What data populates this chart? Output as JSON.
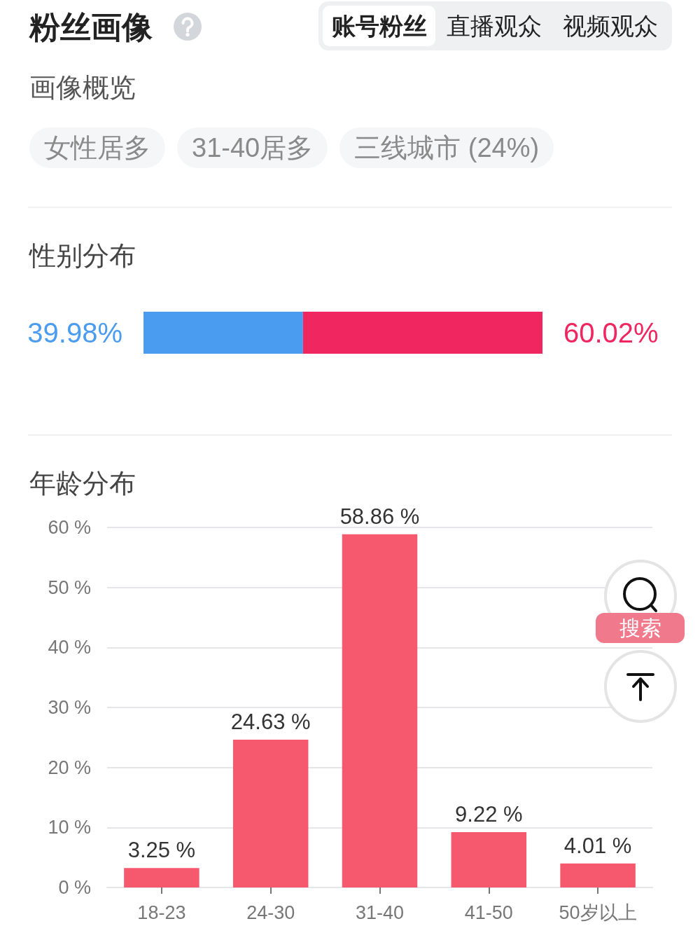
{
  "chart_data": [
    {
      "type": "other",
      "title": "粉丝画像",
      "subtitle": "画像概览",
      "annotations": [
        "账号粉丝",
        "直播观众",
        "视频观众",
        "女性居多",
        "31-40居多",
        "三线城市 (24%)"
      ]
    },
    {
      "type": "bar",
      "title": "性别分布",
      "orientation": "horizontal",
      "stacked": true,
      "categories": [
        null
      ],
      "series": [
        {
          "color": "#4a9cf0",
          "values": [
            39.98
          ],
          "value_labels": [
            "39.98%"
          ]
        },
        {
          "color": "#ef2660",
          "values": [
            60.02
          ],
          "value_labels": [
            "60.02%"
          ]
        }
      ],
      "xlim": [
        0,
        100
      ],
      "tick_labels": false
    },
    {
      "type": "bar",
      "title": "年龄分布",
      "categories": [
        "18-23",
        "24-30",
        "31-40",
        "41-50",
        "50岁以上"
      ],
      "values": [
        3.25,
        24.63,
        58.86,
        9.22,
        4.01
      ],
      "color": "#f6596e",
      "value_labels": [
        "3.25 %",
        "24.63 %",
        "58.86 %",
        "9.22 %",
        "4.01 %"
      ],
      "ylim": [
        0,
        60
      ],
      "yticks": [
        {
          "value": 0,
          "label": "0 %"
        },
        {
          "value": 10,
          "label": "10 %"
        },
        {
          "value": 20,
          "label": "20 %"
        },
        {
          "value": 30,
          "label": "30 %"
        },
        {
          "value": 40,
          "label": "40 %"
        },
        {
          "value": 50,
          "label": "50 %"
        },
        {
          "value": 60,
          "label": "60 %"
        }
      ],
      "grid": "y",
      "annotations": [
        "搜索"
      ]
    }
  ]
}
